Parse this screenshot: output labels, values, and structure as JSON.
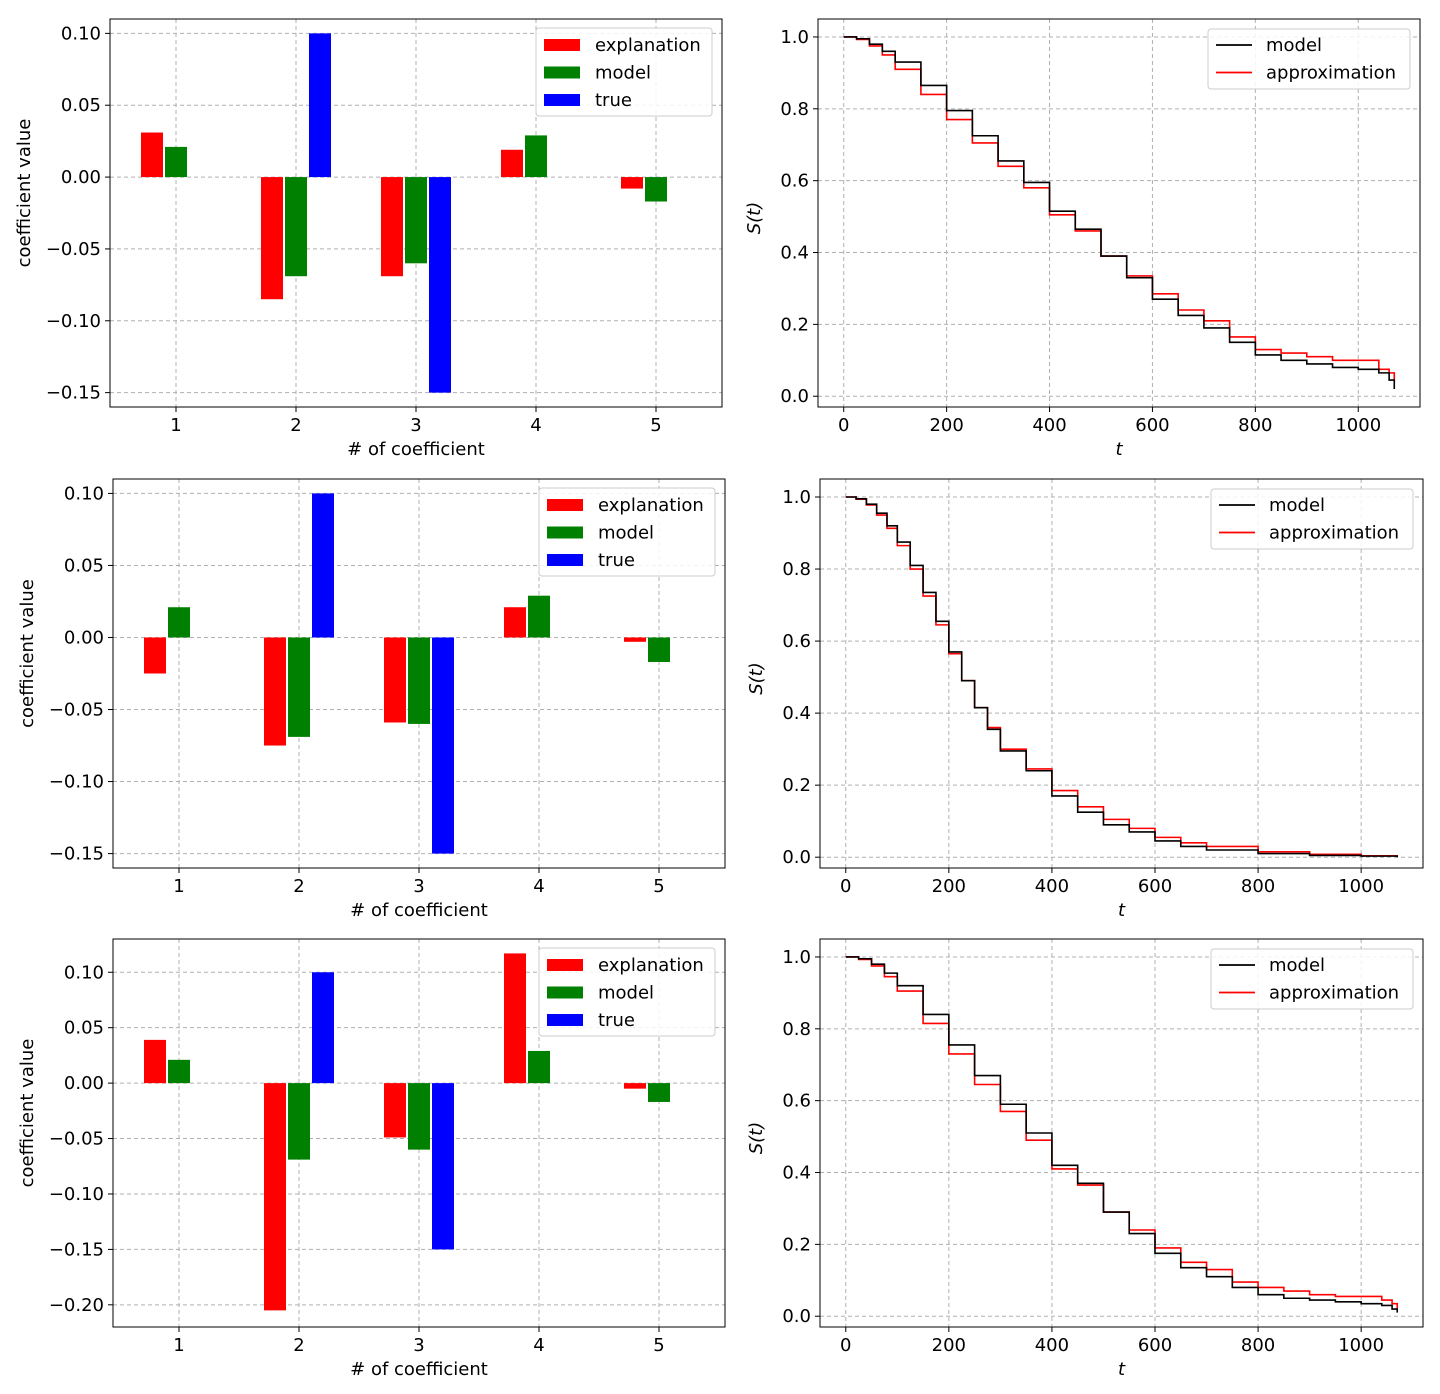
{
  "chart_data": [
    {
      "type": "bar",
      "xlabel": "# of coefficient",
      "ylabel": "coefficient value",
      "categories": [
        "1",
        "2",
        "3",
        "4",
        "5"
      ],
      "ylim": [
        -0.16,
        0.11
      ],
      "yticks": [
        0.1,
        0.05,
        0.0,
        -0.05,
        -0.1,
        -0.15
      ],
      "ytick_labels": [
        "0.10",
        "0.05",
        "0.00",
        "−0.05",
        "−0.10",
        "−0.15"
      ],
      "grid": true,
      "legend_position": "top-right",
      "series": [
        {
          "name": "explanation",
          "color": "#ff0000",
          "values": [
            0.031,
            -0.085,
            -0.069,
            0.019,
            -0.008
          ]
        },
        {
          "name": "model",
          "color": "#008000",
          "values": [
            0.021,
            -0.069,
            -0.06,
            0.029,
            -0.017
          ]
        },
        {
          "name": "true",
          "color": "#0000ff",
          "values": [
            0,
            0.1,
            -0.15,
            0,
            0
          ]
        }
      ]
    },
    {
      "type": "line",
      "xlabel": "t",
      "ylabel": "S(t)",
      "xlim": [
        -50,
        1120
      ],
      "ylim": [
        -0.03,
        1.05
      ],
      "xticks": [
        0,
        200,
        400,
        600,
        800,
        1000
      ],
      "xtick_labels": [
        "0",
        "200",
        "400",
        "600",
        "800",
        "1000"
      ],
      "yticks": [
        0.0,
        0.2,
        0.4,
        0.6,
        0.8,
        1.0
      ],
      "ytick_labels": [
        "0.0",
        "0.2",
        "0.4",
        "0.6",
        "0.8",
        "1.0"
      ],
      "grid": true,
      "legend_position": "top-right",
      "series": [
        {
          "name": "model",
          "color": "#000000",
          "x": [
            0,
            25,
            50,
            75,
            100,
            150,
            200,
            250,
            300,
            350,
            400,
            450,
            500,
            550,
            600,
            650,
            700,
            750,
            800,
            850,
            900,
            950,
            1000,
            1040,
            1060,
            1070
          ],
          "y": [
            1.0,
            0.995,
            0.98,
            0.96,
            0.93,
            0.865,
            0.795,
            0.725,
            0.655,
            0.595,
            0.515,
            0.465,
            0.39,
            0.33,
            0.27,
            0.225,
            0.19,
            0.15,
            0.115,
            0.1,
            0.09,
            0.08,
            0.075,
            0.065,
            0.045,
            0.02
          ]
        },
        {
          "name": "approximation",
          "color": "#ff0000",
          "x": [
            0,
            25,
            50,
            75,
            100,
            150,
            200,
            250,
            300,
            350,
            400,
            450,
            500,
            550,
            600,
            650,
            700,
            750,
            800,
            850,
            900,
            950,
            1000,
            1040,
            1060,
            1070
          ],
          "y": [
            1.0,
            0.993,
            0.975,
            0.95,
            0.91,
            0.84,
            0.77,
            0.705,
            0.64,
            0.58,
            0.505,
            0.46,
            0.39,
            0.335,
            0.285,
            0.24,
            0.21,
            0.165,
            0.13,
            0.12,
            0.11,
            0.1,
            0.1,
            0.075,
            0.065,
            0.04
          ]
        }
      ]
    },
    {
      "type": "bar",
      "xlabel": "# of coefficient",
      "ylabel": "coefficient value",
      "categories": [
        "1",
        "2",
        "3",
        "4",
        "5"
      ],
      "ylim": [
        -0.16,
        0.11
      ],
      "yticks": [
        0.1,
        0.05,
        0.0,
        -0.05,
        -0.1,
        -0.15
      ],
      "ytick_labels": [
        "0.10",
        "0.05",
        "0.00",
        "−0.05",
        "−0.10",
        "−0.15"
      ],
      "grid": true,
      "legend_position": "top-right",
      "series": [
        {
          "name": "explanation",
          "color": "#ff0000",
          "values": [
            -0.025,
            -0.075,
            -0.059,
            0.021,
            -0.003
          ]
        },
        {
          "name": "model",
          "color": "#008000",
          "values": [
            0.021,
            -0.069,
            -0.06,
            0.029,
            -0.017
          ]
        },
        {
          "name": "true",
          "color": "#0000ff",
          "values": [
            0,
            0.1,
            -0.15,
            0,
            0
          ]
        }
      ]
    },
    {
      "type": "line",
      "xlabel": "t",
      "ylabel": "S(t)",
      "xlim": [
        -50,
        1120
      ],
      "ylim": [
        -0.03,
        1.05
      ],
      "xticks": [
        0,
        200,
        400,
        600,
        800,
        1000
      ],
      "xtick_labels": [
        "0",
        "200",
        "400",
        "600",
        "800",
        "1000"
      ],
      "yticks": [
        0.0,
        0.2,
        0.4,
        0.6,
        0.8,
        1.0
      ],
      "ytick_labels": [
        "0.0",
        "0.2",
        "0.4",
        "0.6",
        "0.8",
        "1.0"
      ],
      "grid": true,
      "legend_position": "top-right",
      "series": [
        {
          "name": "model",
          "color": "#000000",
          "x": [
            0,
            20,
            40,
            60,
            80,
            100,
            125,
            150,
            175,
            200,
            225,
            250,
            275,
            300,
            350,
            400,
            450,
            500,
            550,
            600,
            650,
            700,
            800,
            900,
            1000,
            1070
          ],
          "y": [
            1.0,
            0.995,
            0.98,
            0.955,
            0.92,
            0.875,
            0.81,
            0.735,
            0.655,
            0.57,
            0.49,
            0.415,
            0.355,
            0.295,
            0.24,
            0.17,
            0.125,
            0.09,
            0.07,
            0.045,
            0.03,
            0.02,
            0.01,
            0.005,
            0.003,
            0.0
          ]
        },
        {
          "name": "approximation",
          "color": "#ff0000",
          "x": [
            0,
            20,
            40,
            60,
            80,
            100,
            125,
            150,
            175,
            200,
            225,
            250,
            275,
            300,
            350,
            400,
            450,
            500,
            550,
            600,
            650,
            700,
            800,
            900,
            1000,
            1070
          ],
          "y": [
            1.0,
            0.994,
            0.978,
            0.95,
            0.913,
            0.865,
            0.8,
            0.725,
            0.645,
            0.565,
            0.49,
            0.415,
            0.36,
            0.3,
            0.245,
            0.185,
            0.14,
            0.105,
            0.08,
            0.055,
            0.04,
            0.03,
            0.015,
            0.008,
            0.004,
            0.0
          ]
        }
      ]
    },
    {
      "type": "bar",
      "xlabel": "# of coefficient",
      "ylabel": "coefficient value",
      "categories": [
        "1",
        "2",
        "3",
        "4",
        "5"
      ],
      "ylim": [
        -0.22,
        0.13
      ],
      "yticks": [
        0.1,
        0.05,
        0.0,
        -0.05,
        -0.1,
        -0.15,
        -0.2
      ],
      "ytick_labels": [
        "0.10",
        "0.05",
        "0.00",
        "−0.05",
        "−0.10",
        "−0.15",
        "−0.20"
      ],
      "grid": true,
      "legend_position": "top-right",
      "series": [
        {
          "name": "explanation",
          "color": "#ff0000",
          "values": [
            0.039,
            -0.205,
            -0.049,
            0.117,
            -0.005
          ]
        },
        {
          "name": "model",
          "color": "#008000",
          "values": [
            0.021,
            -0.069,
            -0.06,
            0.029,
            -0.017
          ]
        },
        {
          "name": "true",
          "color": "#0000ff",
          "values": [
            0,
            0.1,
            -0.15,
            0,
            0
          ]
        }
      ]
    },
    {
      "type": "line",
      "xlabel": "t",
      "ylabel": "S(t)",
      "xlim": [
        -50,
        1120
      ],
      "ylim": [
        -0.03,
        1.05
      ],
      "xticks": [
        0,
        200,
        400,
        600,
        800,
        1000
      ],
      "xtick_labels": [
        "0",
        "200",
        "400",
        "600",
        "800",
        "1000"
      ],
      "yticks": [
        0.0,
        0.2,
        0.4,
        0.6,
        0.8,
        1.0
      ],
      "ytick_labels": [
        "0.0",
        "0.2",
        "0.4",
        "0.6",
        "0.8",
        "1.0"
      ],
      "grid": true,
      "legend_position": "top-right",
      "series": [
        {
          "name": "model",
          "color": "#000000",
          "x": [
            0,
            25,
            50,
            75,
            100,
            150,
            200,
            250,
            300,
            350,
            400,
            450,
            500,
            550,
            600,
            650,
            700,
            750,
            800,
            850,
            900,
            950,
            1000,
            1040,
            1060,
            1070
          ],
          "y": [
            1.0,
            0.995,
            0.98,
            0.955,
            0.92,
            0.84,
            0.755,
            0.67,
            0.59,
            0.51,
            0.42,
            0.37,
            0.29,
            0.23,
            0.175,
            0.135,
            0.11,
            0.08,
            0.06,
            0.05,
            0.045,
            0.04,
            0.035,
            0.03,
            0.02,
            0.01
          ]
        },
        {
          "name": "approximation",
          "color": "#ff0000",
          "x": [
            0,
            25,
            50,
            75,
            100,
            150,
            200,
            250,
            300,
            350,
            400,
            450,
            500,
            550,
            600,
            650,
            700,
            750,
            800,
            850,
            900,
            950,
            1000,
            1040,
            1060,
            1070
          ],
          "y": [
            1.0,
            0.993,
            0.975,
            0.945,
            0.905,
            0.815,
            0.73,
            0.645,
            0.57,
            0.49,
            0.41,
            0.365,
            0.29,
            0.24,
            0.19,
            0.15,
            0.13,
            0.095,
            0.08,
            0.07,
            0.06,
            0.055,
            0.055,
            0.045,
            0.035,
            0.02
          ]
        }
      ]
    }
  ]
}
